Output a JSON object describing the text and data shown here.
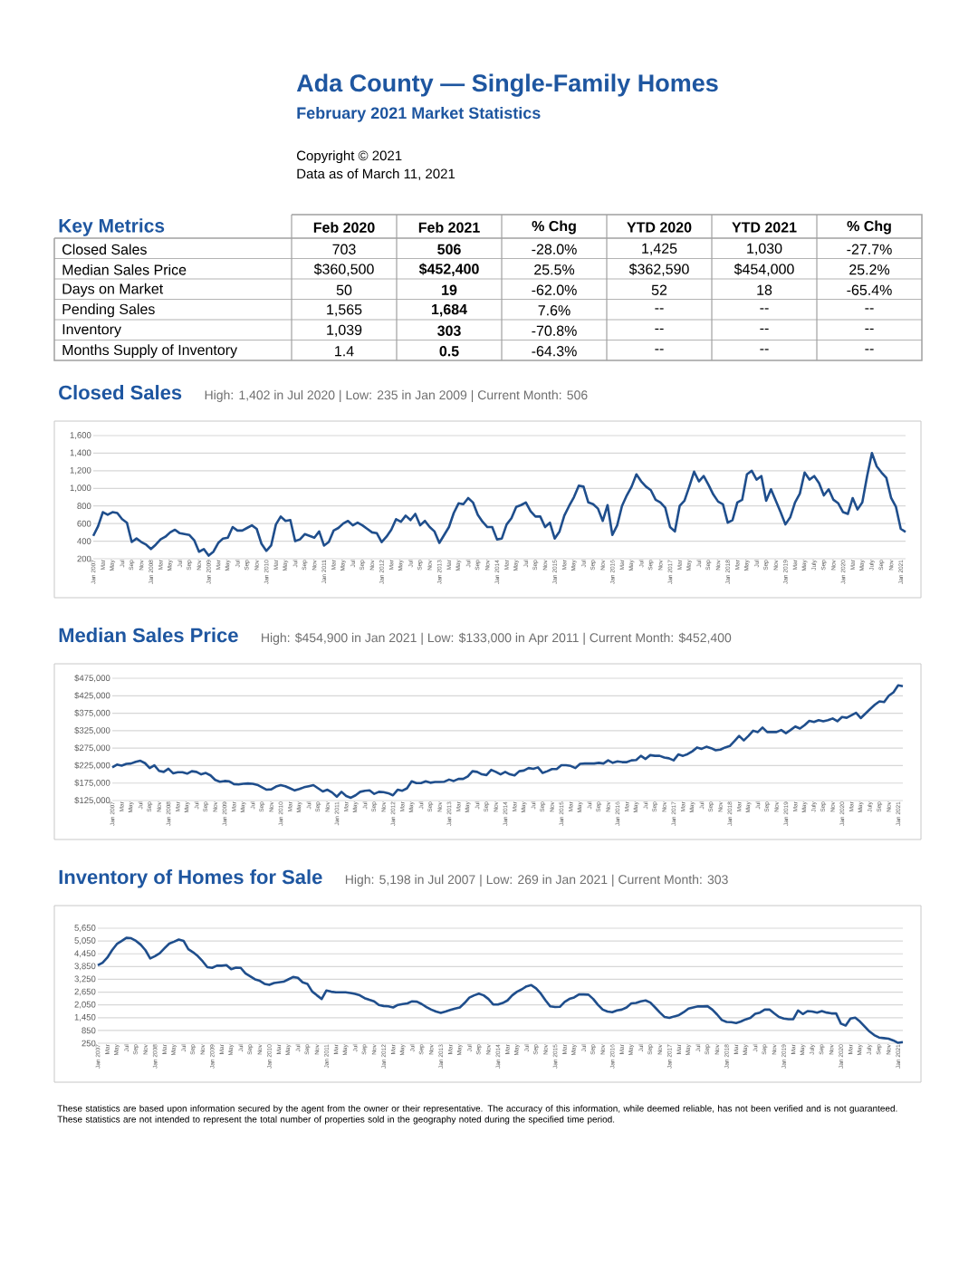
{
  "chart_data": [
    {
      "type": "other",
      "title": "Ada County — Single-Family Homes",
      "subtitle": "February 2021 Market Statistics",
      "annotations": [
        "Copyright © 2021",
        "Data as of March 11, 2021"
      ]
    },
    {
      "type": "other",
      "title": "Key Metrics",
      "categories": [
        "Feb 2020",
        "Feb 2021",
        "% Chg",
        "YTD 2020",
        "YTD 2021",
        "% Chg"
      ],
      "y_categories": [
        "Closed Sales",
        "Median Sales Price",
        "Days on Market",
        "Pending Sales",
        "Inventory",
        "Months Supply of Inventory"
      ],
      "cell_labels": [
        [
          "703",
          "506",
          "-28.0%",
          "1,425",
          "1,030",
          "-27.7%"
        ],
        [
          "$360,500",
          "$452,400",
          "25.5%",
          "$362,590",
          "$454,000",
          "25.2%"
        ],
        [
          "50",
          "19",
          "-62.0%",
          "52",
          "18",
          "-65.4%"
        ],
        [
          "1,565",
          "1,684",
          "7.6%",
          "--",
          "--",
          "--"
        ],
        [
          "1,039",
          "303",
          "-70.8%",
          "--",
          "--",
          "--"
        ],
        [
          "1.4",
          "0.5",
          "-64.3%",
          "--",
          "--",
          "--"
        ]
      ]
    },
    {
      "type": "line",
      "title": "Closed Sales",
      "subtitle": "High: 1,402 in Jul 2020 | Low: 235 in Jan 2009 | Current Month: 506",
      "grid": "y",
      "categories": [
        "Jan 2007",
        null,
        "Mar",
        null,
        "May",
        null,
        "Jul",
        null,
        "Sep",
        null,
        "Nov",
        null,
        "Jan 2008",
        null,
        "Mar",
        null,
        "May",
        null,
        "Jul",
        null,
        "Sep",
        null,
        "Nov",
        null,
        "Jan 2009",
        null,
        "Mar",
        null,
        "May",
        null,
        "Jul",
        null,
        "Sep",
        null,
        "Nov",
        null,
        "Jan 2010",
        null,
        "Mar",
        null,
        "May",
        null,
        "Jul",
        null,
        "Sep",
        null,
        "Nov",
        null,
        "Jan 2011",
        null,
        "Mar",
        null,
        "May",
        null,
        "Jul",
        null,
        "Sep",
        null,
        "Nov",
        null,
        "Jan 2012",
        null,
        "Mar",
        null,
        "May",
        null,
        "Jul",
        null,
        "Sep",
        null,
        "Nov",
        null,
        "Jan 2013",
        null,
        "Mar",
        null,
        "May",
        null,
        "Jul",
        null,
        "Sep",
        null,
        "Nov",
        null,
        "Jan 2014",
        null,
        "Mar",
        null,
        "May",
        null,
        "Jul",
        null,
        "Sep",
        null,
        "Nov",
        null,
        "Jan 2015",
        null,
        "Mar",
        null,
        "May",
        null,
        "Jul",
        null,
        "Sep",
        null,
        "Nov",
        null,
        "Jan 2016",
        null,
        "Mar",
        null,
        "May",
        null,
        "Jul",
        null,
        "Sep",
        null,
        "Nov",
        null,
        "Jan 2017",
        null,
        "Mar",
        null,
        "May",
        null,
        "Jul",
        null,
        "Sep",
        null,
        "Nov",
        null,
        "Jan 2018",
        null,
        "Mar",
        null,
        "May",
        null,
        "Jul",
        null,
        "Sep",
        null,
        "Nov",
        null,
        "Jan 2019",
        null,
        "Mar",
        null,
        "May",
        null,
        "July",
        null,
        "Sep",
        null,
        "Nov",
        null,
        "Jan 2020",
        null,
        "Mar",
        null,
        "May",
        null,
        "July",
        null,
        "Sep",
        null,
        "Nov",
        null,
        "Jan 2021",
        null
      ],
      "ylim": [
        200,
        1600
      ],
      "yticks": [
        200,
        400,
        600,
        800,
        {
          "value": 1000,
          "label": "1,000"
        },
        {
          "value": 1200,
          "label": "1,200"
        },
        {
          "value": 1400,
          "label": "1,400"
        },
        {
          "value": 1600,
          "label": "1,600"
        }
      ],
      "series": [
        {
          "color": "#1f4e8c",
          "values": [
            460,
            570,
            730,
            700,
            730,
            720,
            650,
            610,
            390,
            430,
            390,
            360,
            310,
            360,
            420,
            450,
            500,
            530,
            490,
            480,
            470,
            410,
            280,
            310,
            235,
            280,
            380,
            430,
            440,
            560,
            520,
            520,
            550,
            580,
            540,
            370,
            290,
            350,
            590,
            680,
            630,
            640,
            400,
            420,
            480,
            460,
            440,
            510,
            350,
            390,
            520,
            550,
            600,
            630,
            580,
            610,
            580,
            540,
            500,
            490,
            390,
            450,
            530,
            650,
            620,
            690,
            640,
            710,
            580,
            630,
            560,
            510,
            380,
            470,
            560,
            720,
            830,
            820,
            890,
            840,
            700,
            620,
            560,
            560,
            420,
            430,
            590,
            660,
            790,
            810,
            840,
            740,
            680,
            680,
            560,
            610,
            430,
            510,
            690,
            800,
            900,
            1030,
            1020,
            840,
            820,
            770,
            630,
            810,
            470,
            580,
            800,
            920,
            1020,
            1160,
            1080,
            1020,
            980,
            870,
            840,
            780,
            560,
            510,
            800,
            860,
            1020,
            1190,
            1080,
            1140,
            1040,
            930,
            850,
            820,
            610,
            640,
            840,
            870,
            1160,
            1200,
            1100,
            1140,
            860,
            990,
            860,
            730,
            590,
            670,
            840,
            940,
            1180,
            1100,
            1140,
            1060,
            920,
            990,
            870,
            830,
            730,
            710,
            890,
            760,
            840,
            1140,
            1402,
            1250,
            1180,
            1120,
            890,
            790,
            540,
            506
          ]
        }
      ]
    },
    {
      "type": "line",
      "title": "Median Sales Price",
      "subtitle": "High: $454,900 in Jan 2021 | Low: $133,000 in Apr 2011 | Current Month: $452,400",
      "grid": "y",
      "categories": [
        "Jan 2007",
        null,
        "Mar",
        null,
        "May",
        null,
        "Jul",
        null,
        "Sep",
        null,
        "Nov",
        null,
        "Jan 2008",
        null,
        "Mar",
        null,
        "May",
        null,
        "Jul",
        null,
        "Sep",
        null,
        "Nov",
        null,
        "Jan 2009",
        null,
        "Mar",
        null,
        "May",
        null,
        "Jul",
        null,
        "Sep",
        null,
        "Nov",
        null,
        "Jan 2010",
        null,
        "Mar",
        null,
        "May",
        null,
        "Jul",
        null,
        "Sep",
        null,
        "Nov",
        null,
        "Jan 2011",
        null,
        "Mar",
        null,
        "May",
        null,
        "Jul",
        null,
        "Sep",
        null,
        "Nov",
        null,
        "Jan 2012",
        null,
        "Mar",
        null,
        "May",
        null,
        "Jul",
        null,
        "Sep",
        null,
        "Nov",
        null,
        "Jan 2013",
        null,
        "Mar",
        null,
        "May",
        null,
        "Jul",
        null,
        "Sep",
        null,
        "Nov",
        null,
        "Jan 2014",
        null,
        "Mar",
        null,
        "May",
        null,
        "Jul",
        null,
        "Sep",
        null,
        "Nov",
        null,
        "Jan 2015",
        null,
        "Mar",
        null,
        "May",
        null,
        "Jul",
        null,
        "Sep",
        null,
        "Nov",
        null,
        "Jan 2016",
        null,
        "Mar",
        null,
        "May",
        null,
        "Jul",
        null,
        "Sep",
        null,
        "Nov",
        null,
        "Jan 2017",
        null,
        "Mar",
        null,
        "May",
        null,
        "Jul",
        null,
        "Sep",
        null,
        "Nov",
        null,
        "Jan 2018",
        null,
        "Mar",
        null,
        "May",
        null,
        "Jul",
        null,
        "Sep",
        null,
        "Nov",
        null,
        "Jan 2019",
        null,
        "Mar",
        null,
        "May",
        null,
        "July",
        null,
        "Sep",
        null,
        "Nov",
        null,
        "Jan 2020",
        null,
        "Mar",
        null,
        "May",
        null,
        "July",
        null,
        "Sep",
        null,
        "Nov",
        null,
        "Jan 2021",
        null
      ],
      "ylim": [
        125000,
        475000
      ],
      "yticks": [
        {
          "value": 125000,
          "label": "$125,000"
        },
        {
          "value": 175000,
          "label": "$175,000"
        },
        {
          "value": 225000,
          "label": "$225,000"
        },
        {
          "value": 275000,
          "label": "$275,000"
        },
        {
          "value": 325000,
          "label": "$325,000"
        },
        {
          "value": 375000,
          "label": "$375,000"
        },
        {
          "value": 425000,
          "label": "$425,000"
        },
        {
          "value": 475000,
          "label": "$475,000"
        }
      ],
      "series": [
        {
          "color": "#1f4e8c",
          "values": [
            220000,
            228000,
            225000,
            230000,
            231000,
            236000,
            239000,
            232000,
            218000,
            226000,
            210000,
            207000,
            216000,
            203000,
            206000,
            206000,
            202000,
            209000,
            207000,
            200000,
            204000,
            197000,
            184000,
            179000,
            181000,
            180000,
            172000,
            171000,
            173000,
            174000,
            173000,
            170000,
            163000,
            156000,
            157000,
            165000,
            169000,
            166000,
            160000,
            154000,
            158000,
            163000,
            166000,
            169000,
            160000,
            151000,
            156000,
            148000,
            136000,
            150000,
            138000,
            133000,
            140000,
            150000,
            153000,
            154000,
            144000,
            150000,
            149000,
            146000,
            140000,
            156000,
            153000,
            160000,
            180000,
            175000,
            175000,
            180000,
            176000,
            178000,
            178000,
            179000,
            185000,
            181000,
            187000,
            187000,
            194000,
            209000,
            207000,
            200000,
            198000,
            213000,
            207000,
            200000,
            207000,
            200000,
            197000,
            209000,
            211000,
            218000,
            216000,
            220000,
            204000,
            209000,
            215000,
            215000,
            226000,
            226000,
            224000,
            218000,
            230000,
            231000,
            231000,
            231000,
            233000,
            231000,
            240000,
            233000,
            237000,
            235000,
            235000,
            240000,
            241000,
            253000,
            244000,
            255000,
            253000,
            253000,
            248000,
            246000,
            240000,
            257000,
            253000,
            258000,
            266000,
            277000,
            273000,
            279000,
            275000,
            269000,
            271000,
            277000,
            281000,
            295000,
            310000,
            297000,
            310000,
            325000,
            321000,
            334000,
            321000,
            321000,
            321000,
            327000,
            318000,
            327000,
            337000,
            331000,
            341000,
            353000,
            350000,
            355000,
            352000,
            355000,
            360000,
            352000,
            364000,
            362000,
            369000,
            376000,
            361000,
            374000,
            387000,
            399000,
            409000,
            407000,
            425000,
            435000,
            454900,
            452400
          ]
        }
      ]
    },
    {
      "type": "line",
      "title": "Inventory of Homes for Sale",
      "subtitle": "High: 5,198 in Jul 2007 | Low: 269 in Jan 2021 | Current Month: 303",
      "grid": "y",
      "categories": [
        "Jan 2007",
        null,
        "Mar",
        null,
        "May",
        null,
        "Jul",
        null,
        "Sep",
        null,
        "Nov",
        null,
        "Jan 2008",
        null,
        "Mar",
        null,
        "May",
        null,
        "Jul",
        null,
        "Sep",
        null,
        "Nov",
        null,
        "Jan 2009",
        null,
        "Mar",
        null,
        "May",
        null,
        "Jul",
        null,
        "Sep",
        null,
        "Nov",
        null,
        "Jan 2010",
        null,
        "Mar",
        null,
        "May",
        null,
        "Jul",
        null,
        "Sep",
        null,
        "Nov",
        null,
        "Jan 2011",
        null,
        "Mar",
        null,
        "May",
        null,
        "Jul",
        null,
        "Sep",
        null,
        "Nov",
        null,
        "Jan 2012",
        null,
        "Mar",
        null,
        "May",
        null,
        "Jul",
        null,
        "Sep",
        null,
        "Nov",
        null,
        "Jan 2013",
        null,
        "Mar",
        null,
        "May",
        null,
        "Jul",
        null,
        "Sep",
        null,
        "Nov",
        null,
        "Jan 2014",
        null,
        "Mar",
        null,
        "May",
        null,
        "Jul",
        null,
        "Sep",
        null,
        "Nov",
        null,
        "Jan 2015",
        null,
        "Mar",
        null,
        "May",
        null,
        "Jul",
        null,
        "Sep",
        null,
        "Nov",
        null,
        "Jan 2016",
        null,
        "Mar",
        null,
        "May",
        null,
        "Jul",
        null,
        "Sep",
        null,
        "Nov",
        null,
        "Jan 2017",
        null,
        "Mar",
        null,
        "May",
        null,
        "Jul",
        null,
        "Sep",
        null,
        "Nov",
        null,
        "Jan 2018",
        null,
        "Mar",
        null,
        "May",
        null,
        "Jul",
        null,
        "Sep",
        null,
        "Nov",
        null,
        "Jan 2019",
        null,
        "Mar",
        null,
        "May",
        null,
        "July",
        null,
        "Sep",
        null,
        "Nov",
        null,
        "Jan 2020",
        null,
        "Mar",
        null,
        "May",
        null,
        "July",
        null,
        "Sep",
        null,
        "Nov",
        null,
        "Jan 2021",
        null
      ],
      "ylim": [
        250,
        5650
      ],
      "yticks": [
        250,
        850,
        {
          "value": 1450,
          "label": "1,450"
        },
        {
          "value": 2050,
          "label": "2,050"
        },
        {
          "value": 2650,
          "label": "2,650"
        },
        {
          "value": 3250,
          "label": "3,250"
        },
        {
          "value": 3850,
          "label": "3,850"
        },
        {
          "value": 4450,
          "label": "4,450"
        },
        {
          "value": 5050,
          "label": "5,050"
        },
        {
          "value": 5650,
          "label": "5,650"
        }
      ],
      "series": [
        {
          "color": "#1f4e8c",
          "values": [
            3915,
            4030,
            4270,
            4620,
            4910,
            5050,
            5198,
            5180,
            5060,
            4880,
            4620,
            4230,
            4340,
            4480,
            4710,
            4930,
            5020,
            5120,
            5060,
            4670,
            4520,
            4340,
            4100,
            3820,
            3790,
            3890,
            3890,
            3920,
            3730,
            3800,
            3790,
            3530,
            3390,
            3250,
            3180,
            3040,
            2990,
            3080,
            3110,
            3140,
            3250,
            3360,
            3320,
            3110,
            3040,
            2680,
            2500,
            2330,
            2730,
            2670,
            2640,
            2640,
            2640,
            2610,
            2570,
            2500,
            2370,
            2290,
            2220,
            2050,
            2000,
            1980,
            1930,
            2050,
            2090,
            2120,
            2220,
            2200,
            2090,
            1950,
            1830,
            1740,
            1680,
            1740,
            1810,
            1880,
            1930,
            2140,
            2390,
            2500,
            2580,
            2500,
            2330,
            2070,
            2070,
            2140,
            2260,
            2500,
            2670,
            2780,
            2920,
            2980,
            2830,
            2580,
            2260,
            1980,
            1950,
            1960,
            2190,
            2330,
            2400,
            2540,
            2540,
            2530,
            2330,
            2050,
            1830,
            1740,
            1710,
            1790,
            1830,
            1930,
            2120,
            2140,
            2220,
            2260,
            2160,
            1930,
            1690,
            1480,
            1440,
            1510,
            1570,
            1710,
            1880,
            1930,
            1980,
            1980,
            1990,
            1830,
            1600,
            1340,
            1250,
            1240,
            1200,
            1270,
            1370,
            1440,
            1630,
            1690,
            1830,
            1830,
            1650,
            1480,
            1410,
            1380,
            1380,
            1790,
            1620,
            1760,
            1740,
            1690,
            1760,
            1690,
            1650,
            1650,
            1170,
            1080,
            1410,
            1450,
            1270,
            1030,
            800,
            630,
            520,
            490,
            460,
            380,
            269,
            303
          ]
        }
      ],
      "annotations": [
        "These statistics are based upon information secured by the agent from the owner or their representative. The accuracy of this information, while deemed reliable, has not been verified and is not guaranteed. These statistics are not intended to represent the total number of properties sold in the geography noted during the specified time period."
      ]
    }
  ]
}
